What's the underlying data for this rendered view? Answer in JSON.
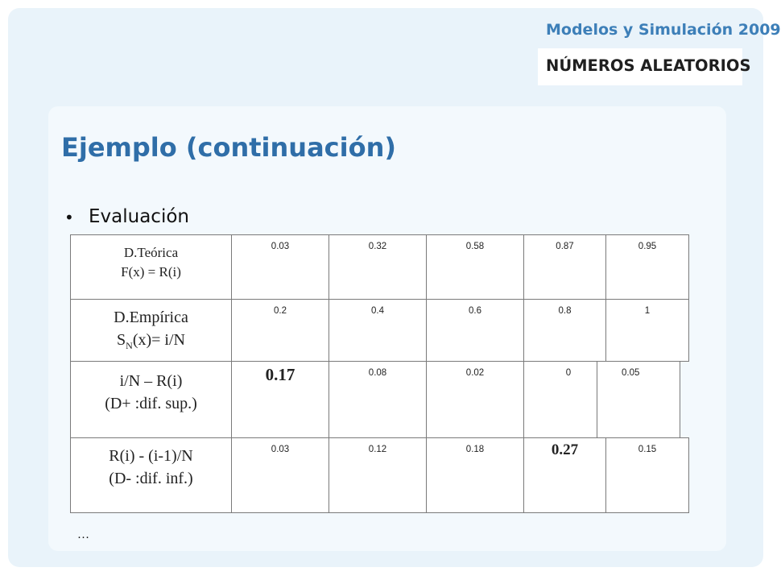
{
  "header": {
    "course": "Modelos y Simulación 2009",
    "topic": "NÚMEROS ALEATORIOS"
  },
  "slide": {
    "title": "Ejemplo (continuación)",
    "bullet": "Evaluación",
    "ellipsis": "…"
  },
  "table": {
    "rows": [
      {
        "label_line1": "D.Teórica",
        "label_line2": "F(x) = R(i)",
        "values": [
          "0.03",
          "0.32",
          "0.58",
          "0.87",
          "0.95"
        ]
      },
      {
        "label_line1": "D.Empírica",
        "label_line2_main": "S",
        "label_line2_sub": "N",
        "label_line2_rest": "(x)= i/N",
        "values": [
          "0.2",
          "0.4",
          "0.6",
          "0.8",
          "1"
        ]
      },
      {
        "label_line1": "i/N – R(i)",
        "label_line2": "(D+ :dif. sup.)",
        "values": [
          "0.17",
          "0.08",
          "0.02",
          "0",
          "0.05"
        ]
      },
      {
        "label_line1": "R(i) - (i-1)/N",
        "label_line2": "(D- :dif. inf.)",
        "values": [
          "0.03",
          "0.12",
          "0.18",
          "0.27",
          "0.15"
        ]
      }
    ]
  }
}
